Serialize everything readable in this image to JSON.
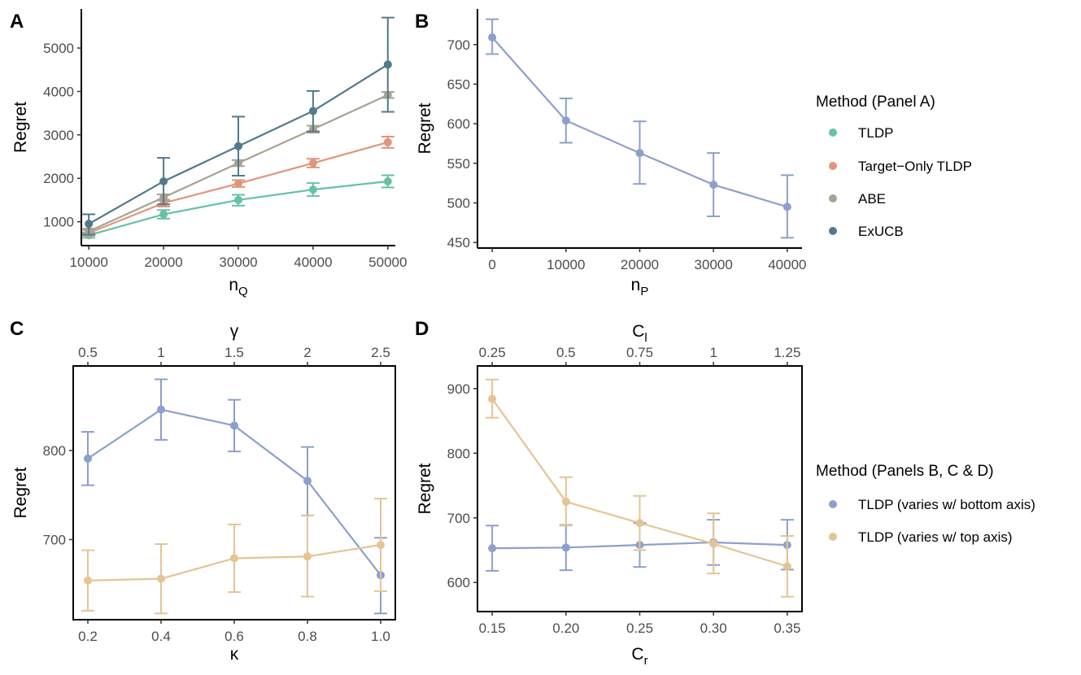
{
  "chart_data": [
    {
      "panel": "A",
      "type": "line",
      "xlabel": "n",
      "xlabel_sub": "Q",
      "ylabel": "Regret",
      "x": [
        10000,
        20000,
        30000,
        40000,
        50000
      ],
      "xlim": [
        9000,
        51000
      ],
      "ylim": [
        450,
        5900
      ],
      "yticks": [
        1000,
        2000,
        3000,
        4000,
        5000
      ],
      "series": [
        {
          "name": "TLDP",
          "color": "#66C2A5",
          "values": [
            690,
            1170,
            1500,
            1740,
            1930
          ],
          "err_low": [
            630,
            1070,
            1370,
            1590,
            1790
          ],
          "err_high": [
            750,
            1270,
            1620,
            1890,
            2070
          ]
        },
        {
          "name": "Target−Only TLDP",
          "color": "#E0957C",
          "values": [
            740,
            1430,
            1880,
            2350,
            2830
          ],
          "err_low": [
            680,
            1350,
            1800,
            2250,
            2700
          ],
          "err_high": [
            800,
            1510,
            1960,
            2450,
            2960
          ]
        },
        {
          "name": "ABE",
          "color": "#A6A392",
          "values": [
            780,
            1560,
            2350,
            3130,
            3920
          ],
          "err_low": [
            720,
            1490,
            2280,
            3050,
            3850
          ],
          "err_high": [
            840,
            1630,
            2420,
            3210,
            3990
          ]
        },
        {
          "name": "ExUCB",
          "color": "#52798C",
          "values": [
            950,
            1930,
            2740,
            3550,
            4620
          ],
          "err_low": [
            700,
            1400,
            2060,
            3080,
            3530
          ],
          "err_high": [
            1170,
            2470,
            3420,
            4010,
            5700
          ]
        }
      ]
    },
    {
      "panel": "B",
      "type": "line",
      "xlabel": "n",
      "xlabel_sub": "P",
      "ylabel": "Regret",
      "x": [
        0,
        10000,
        20000,
        30000,
        40000
      ],
      "xlim": [
        -2000,
        42000
      ],
      "ylim": [
        443,
        745
      ],
      "yticks": [
        450,
        500,
        550,
        600,
        650,
        700
      ],
      "series": [
        {
          "name": "TLDP",
          "color": "#8DA0CB",
          "values": [
            709,
            604,
            563,
            523,
            495
          ],
          "err_low": [
            688,
            576,
            524,
            483,
            456
          ],
          "err_high": [
            732,
            632,
            603,
            563,
            535
          ]
        }
      ]
    },
    {
      "panel": "C",
      "type": "line",
      "xlabel": "κ",
      "ylabel": "Regret",
      "top_xlabel": "γ",
      "x": [
        0.2,
        0.4,
        0.6,
        0.8,
        1.0
      ],
      "x_ticklabels": [
        "0.2",
        "0.4",
        "0.6",
        "0.8",
        "1.0"
      ],
      "top_ticklabels": [
        "0.5",
        "1",
        "1.5",
        "2",
        "2.5"
      ],
      "xlim": [
        0.16,
        1.04
      ],
      "ylim": [
        610,
        895
      ],
      "yticks": [
        700,
        800
      ],
      "series": [
        {
          "name": "TLDP (varies w/ bottom axis)",
          "color": "#8DA0CB",
          "values": [
            791,
            846,
            828,
            766,
            660
          ],
          "err_low": [
            761,
            812,
            799,
            727,
            617
          ],
          "err_high": [
            821,
            880,
            857,
            804,
            702
          ]
        },
        {
          "name": "TLDP (varies w/ top axis)",
          "color": "#E5C494",
          "values": [
            654,
            656,
            679,
            681,
            694
          ],
          "err_low": [
            620,
            617,
            641,
            636,
            642
          ],
          "err_high": [
            688,
            695,
            717,
            727,
            746
          ]
        }
      ]
    },
    {
      "panel": "D",
      "type": "line",
      "xlabel": "C",
      "xlabel_sub": "r",
      "ylabel": "Regret",
      "top_xlabel": "C",
      "top_xlabel_sub": "l",
      "x": [
        0.15,
        0.2,
        0.25,
        0.3,
        0.35
      ],
      "x_ticklabels": [
        "0.15",
        "0.20",
        "0.25",
        "0.30",
        "0.35"
      ],
      "top_ticklabels": [
        "0.25",
        "0.5",
        "0.75",
        "1",
        "1.25"
      ],
      "xlim": [
        0.14,
        0.36
      ],
      "ylim": [
        555,
        935
      ],
      "yticks": [
        600,
        700,
        800,
        900
      ],
      "series": [
        {
          "name": "TLDP (varies w/ bottom axis)",
          "color": "#8DA0CB",
          "values": [
            653,
            654,
            658,
            662,
            658
          ],
          "err_low": [
            618,
            619,
            624,
            627,
            620
          ],
          "err_high": [
            688,
            689,
            692,
            697,
            697
          ]
        },
        {
          "name": "TLDP (varies w/ top axis)",
          "color": "#E5C494",
          "values": [
            884,
            725,
            692,
            660,
            625
          ],
          "err_low": [
            855,
            688,
            650,
            614,
            578
          ],
          "err_high": [
            914,
            763,
            734,
            707,
            672
          ]
        }
      ]
    }
  ],
  "panel_labels": [
    "A",
    "B",
    "C",
    "D"
  ],
  "legend_a": {
    "title": "Method (Panel A)",
    "items": [
      {
        "label": "TLDP",
        "color": "#66C2A5"
      },
      {
        "label": "Target−Only TLDP",
        "color": "#E0957C"
      },
      {
        "label": "ABE",
        "color": "#A6A392"
      },
      {
        "label": "ExUCB",
        "color": "#52798C"
      }
    ]
  },
  "legend_bcd": {
    "title": "Method (Panels B, C & D)",
    "items": [
      {
        "label": "TLDP (varies w/ bottom axis)",
        "color": "#8DA0CB"
      },
      {
        "label": "TLDP (varies w/ top axis)",
        "color": "#E5C494"
      }
    ]
  }
}
